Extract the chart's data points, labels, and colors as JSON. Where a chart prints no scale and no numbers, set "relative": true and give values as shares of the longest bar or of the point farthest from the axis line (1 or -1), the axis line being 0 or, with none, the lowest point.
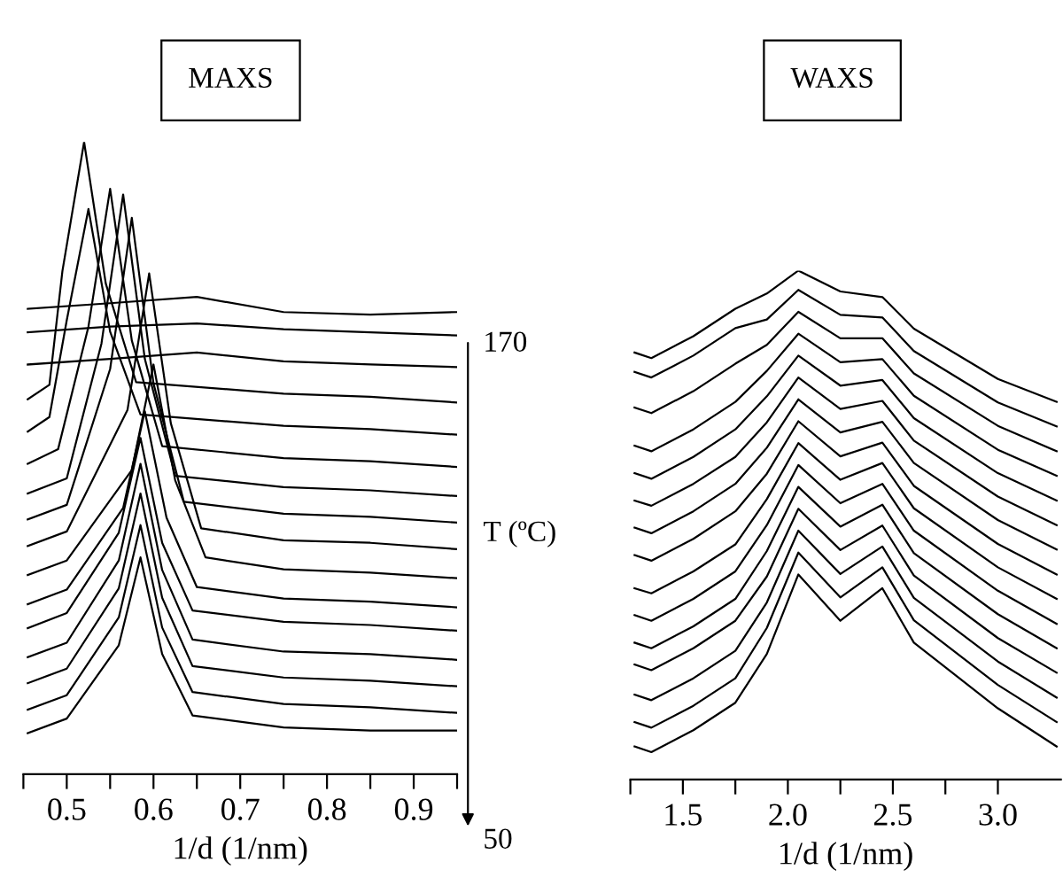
{
  "chart_data": [
    {
      "type": "line",
      "relative": true,
      "title": "MAXS",
      "xlabel": "1/d (1/nm)",
      "xlim": [
        0.45,
        0.95
      ],
      "tick_labels": "x",
      "grid": false,
      "marker": "none",
      "line_style": "solid",
      "xticks": [
        {
          "value": 0.45,
          "label": null
        },
        0.5,
        {
          "value": 0.55,
          "label": null
        },
        0.6,
        {
          "value": 0.65,
          "label": null
        },
        0.7,
        {
          "value": 0.75,
          "label": null
        },
        0.8,
        {
          "value": 0.85,
          "label": null
        },
        0.9,
        {
          "value": 0.95,
          "label": null
        }
      ],
      "annotations": [
        "170",
        "T (ºC)",
        "50"
      ],
      "series": [
        {
          "color": "#000000",
          "x": [
            0.455,
            0.5,
            0.56,
            0.585,
            0.61,
            0.645,
            0.75,
            0.85,
            0.95
          ],
          "values": [
            0.065,
            0.088,
            0.204,
            0.343,
            0.19,
            0.093,
            0.074,
            0.069,
            0.069
          ]
        },
        {
          "color": "#000000",
          "x": [
            0.455,
            0.5,
            0.56,
            0.585,
            0.61,
            0.645,
            0.75,
            0.85,
            0.95
          ],
          "values": [
            0.102,
            0.125,
            0.248,
            0.394,
            0.232,
            0.13,
            0.111,
            0.106,
            0.097
          ]
        },
        {
          "color": "#000000",
          "x": [
            0.455,
            0.5,
            0.56,
            0.585,
            0.61,
            0.645,
            0.75,
            0.85,
            0.95
          ],
          "values": [
            0.144,
            0.167,
            0.294,
            0.444,
            0.279,
            0.171,
            0.153,
            0.148,
            0.139
          ]
        },
        {
          "color": "#000000",
          "x": [
            0.455,
            0.5,
            0.56,
            0.585,
            0.61,
            0.645,
            0.75,
            0.85,
            0.95
          ],
          "values": [
            0.185,
            0.208,
            0.338,
            0.491,
            0.323,
            0.213,
            0.194,
            0.19,
            0.181
          ]
        },
        {
          "color": "#000000",
          "x": [
            0.455,
            0.5,
            0.56,
            0.585,
            0.61,
            0.645,
            0.75,
            0.85,
            0.95
          ],
          "values": [
            0.231,
            0.255,
            0.382,
            0.532,
            0.366,
            0.259,
            0.241,
            0.236,
            0.227
          ]
        },
        {
          "color": "#000000",
          "x": [
            0.455,
            0.5,
            0.565,
            0.59,
            0.615,
            0.65,
            0.75,
            0.85,
            0.95
          ],
          "values": [
            0.269,
            0.292,
            0.421,
            0.574,
            0.406,
            0.296,
            0.278,
            0.273,
            0.264
          ]
        },
        {
          "color": "#000000",
          "x": [
            0.455,
            0.5,
            0.575,
            0.6,
            0.625,
            0.66,
            0.75,
            0.85,
            0.95
          ],
          "values": [
            0.315,
            0.338,
            0.481,
            0.648,
            0.465,
            0.343,
            0.324,
            0.319,
            0.31
          ]
        },
        {
          "color": "#000000",
          "x": [
            0.455,
            0.5,
            0.57,
            0.595,
            0.62,
            0.655,
            0.75,
            0.85,
            0.95
          ],
          "values": [
            0.361,
            0.384,
            0.576,
            0.792,
            0.555,
            0.389,
            0.37,
            0.366,
            0.356
          ]
        },
        {
          "color": "#000000",
          "x": [
            0.455,
            0.5,
            0.55,
            0.575,
            0.6,
            0.635,
            0.75,
            0.85,
            0.95
          ],
          "values": [
            0.403,
            0.426,
            0.641,
            0.88,
            0.618,
            0.431,
            0.412,
            0.407,
            0.398
          ]
        },
        {
          "color": "#000000",
          "x": [
            0.455,
            0.5,
            0.54,
            0.565,
            0.59,
            0.625,
            0.75,
            0.85,
            0.95
          ],
          "values": [
            0.444,
            0.468,
            0.681,
            0.917,
            0.657,
            0.472,
            0.454,
            0.449,
            0.44
          ]
        },
        {
          "color": "#000000",
          "x": [
            0.455,
            0.49,
            0.525,
            0.55,
            0.575,
            0.61,
            0.75,
            0.85,
            0.95
          ],
          "values": [
            0.491,
            0.514,
            0.708,
            0.926,
            0.686,
            0.519,
            0.5,
            0.495,
            0.486
          ]
        },
        {
          "color": "#000000",
          "x": [
            0.455,
            0.48,
            0.5,
            0.525,
            0.55,
            0.585,
            0.75,
            0.85,
            0.95
          ],
          "values": [
            0.542,
            0.565,
            0.718,
            0.894,
            0.7,
            0.569,
            0.551,
            0.546,
            0.537
          ]
        },
        {
          "color": "#000000",
          "x": [
            0.455,
            0.48,
            0.495,
            0.52,
            0.545,
            0.58,
            0.75,
            0.85,
            0.95
          ],
          "values": [
            0.593,
            0.616,
            0.796,
            1.0,
            0.776,
            0.62,
            0.602,
            0.597,
            0.588
          ]
        },
        {
          "color": "#000000",
          "x": [
            0.455,
            0.55,
            0.65,
            0.75,
            0.85,
            0.95
          ],
          "values": [
            0.648,
            0.657,
            0.667,
            0.653,
            0.648,
            0.644
          ]
        },
        {
          "color": "#000000",
          "x": [
            0.455,
            0.55,
            0.65,
            0.75,
            0.85,
            0.95
          ],
          "values": [
            0.699,
            0.708,
            0.713,
            0.704,
            0.699,
            0.694
          ]
        },
        {
          "color": "#000000",
          "x": [
            0.455,
            0.55,
            0.65,
            0.75,
            0.85,
            0.95
          ],
          "values": [
            0.736,
            0.745,
            0.755,
            0.731,
            0.727,
            0.731
          ]
        }
      ]
    },
    {
      "type": "line",
      "relative": true,
      "title": "WAXS",
      "xlabel": "1/d (1/nm)",
      "xlim": [
        1.25,
        3.3
      ],
      "tick_labels": "x",
      "grid": false,
      "marker": "none",
      "line_style": "solid",
      "xticks": [
        {
          "value": 1.25,
          "label": null
        },
        1.5,
        {
          "value": 1.75,
          "label": null
        },
        {
          "value": 2,
          "label": "2.0"
        },
        {
          "value": 2.25,
          "label": null
        },
        2.5,
        {
          "value": 2.75,
          "label": null
        },
        {
          "value": 3,
          "label": "3.0"
        }
      ],
      "series": [
        {
          "color": "#000000",
          "x": [
            1.27,
            1.35,
            1.55,
            1.75,
            1.9,
            2.05,
            2.25,
            2.45,
            2.6,
            3.0,
            3.28
          ],
          "values": [
            0.065,
            0.054,
            0.097,
            0.151,
            0.247,
            0.403,
            0.312,
            0.376,
            0.269,
            0.14,
            0.065
          ]
        },
        {
          "color": "#000000",
          "x": [
            1.27,
            1.35,
            1.55,
            1.75,
            1.9,
            2.05,
            2.25,
            2.45,
            2.6,
            3.0,
            3.28
          ],
          "values": [
            0.113,
            0.102,
            0.145,
            0.199,
            0.298,
            0.446,
            0.358,
            0.417,
            0.313,
            0.186,
            0.113
          ]
        },
        {
          "color": "#000000",
          "x": [
            1.27,
            1.35,
            1.55,
            1.75,
            1.9,
            2.05,
            2.25,
            2.45,
            2.6,
            3.0,
            3.28
          ],
          "values": [
            0.167,
            0.156,
            0.199,
            0.253,
            0.348,
            0.489,
            0.404,
            0.458,
            0.357,
            0.232,
            0.161
          ]
        },
        {
          "color": "#000000",
          "x": [
            1.27,
            1.35,
            1.55,
            1.75,
            1.9,
            2.05,
            2.25,
            2.45,
            2.6,
            3.0,
            3.28
          ],
          "values": [
            0.226,
            0.215,
            0.258,
            0.312,
            0.399,
            0.532,
            0.451,
            0.499,
            0.401,
            0.278,
            0.21
          ]
        },
        {
          "color": "#000000",
          "x": [
            1.27,
            1.35,
            1.55,
            1.75,
            1.9,
            2.05,
            2.25,
            2.45,
            2.6,
            3.0,
            3.28
          ],
          "values": [
            0.269,
            0.258,
            0.301,
            0.355,
            0.449,
            0.575,
            0.497,
            0.54,
            0.445,
            0.325,
            0.258
          ]
        },
        {
          "color": "#000000",
          "x": [
            1.27,
            1.35,
            1.55,
            1.75,
            1.9,
            2.05,
            2.25,
            2.45,
            2.6,
            3.0,
            3.28
          ],
          "values": [
            0.323,
            0.312,
            0.355,
            0.409,
            0.5,
            0.618,
            0.543,
            0.581,
            0.489,
            0.371,
            0.306
          ]
        },
        {
          "color": "#000000",
          "x": [
            1.27,
            1.35,
            1.55,
            1.75,
            1.9,
            2.05,
            2.25,
            2.45,
            2.6,
            3.0,
            3.28
          ],
          "values": [
            0.376,
            0.366,
            0.409,
            0.462,
            0.551,
            0.661,
            0.589,
            0.622,
            0.533,
            0.417,
            0.355
          ]
        },
        {
          "color": "#000000",
          "x": [
            1.27,
            1.35,
            1.55,
            1.75,
            1.9,
            2.05,
            2.25,
            2.45,
            2.6,
            3.0,
            3.28
          ],
          "values": [
            0.441,
            0.43,
            0.473,
            0.527,
            0.601,
            0.704,
            0.635,
            0.662,
            0.577,
            0.463,
            0.403
          ]
        },
        {
          "color": "#000000",
          "x": [
            1.27,
            1.35,
            1.55,
            1.75,
            1.9,
            2.05,
            2.25,
            2.45,
            2.6,
            3.0,
            3.28
          ],
          "values": [
            0.495,
            0.484,
            0.527,
            0.581,
            0.652,
            0.747,
            0.682,
            0.703,
            0.622,
            0.51,
            0.452
          ]
        },
        {
          "color": "#000000",
          "x": [
            1.27,
            1.35,
            1.55,
            1.75,
            1.9,
            2.05,
            2.25,
            2.45,
            2.6,
            3.0,
            3.28
          ],
          "values": [
            0.548,
            0.538,
            0.581,
            0.634,
            0.702,
            0.79,
            0.728,
            0.744,
            0.666,
            0.556,
            0.5
          ]
        },
        {
          "color": "#000000",
          "x": [
            1.27,
            1.35,
            1.55,
            1.75,
            1.9,
            2.05,
            2.25,
            2.45,
            2.6,
            3.0,
            3.28
          ],
          "values": [
            0.602,
            0.591,
            0.634,
            0.688,
            0.753,
            0.833,
            0.774,
            0.785,
            0.71,
            0.602,
            0.548
          ]
        },
        {
          "color": "#000000",
          "x": [
            1.27,
            1.35,
            1.55,
            1.75,
            1.9,
            2.05,
            2.25,
            2.45,
            2.6,
            3.0,
            3.28
          ],
          "values": [
            0.656,
            0.645,
            0.688,
            0.742,
            0.803,
            0.876,
            0.82,
            0.826,
            0.754,
            0.648,
            0.597
          ]
        },
        {
          "color": "#000000",
          "x": [
            1.27,
            1.35,
            1.55,
            1.75,
            1.9,
            2.05,
            2.25,
            2.45,
            2.6,
            3.0,
            3.28
          ],
          "values": [
            0.731,
            0.72,
            0.763,
            0.817,
            0.854,
            0.919,
            0.867,
            0.867,
            0.798,
            0.695,
            0.645
          ]
        },
        {
          "color": "#000000",
          "x": [
            1.27,
            1.35,
            1.55,
            1.75,
            1.9,
            2.05,
            2.25,
            2.45,
            2.6,
            3.0,
            3.28
          ],
          "values": [
            0.801,
            0.79,
            0.833,
            0.887,
            0.904,
            0.962,
            0.913,
            0.908,
            0.842,
            0.741,
            0.694
          ]
        },
        {
          "color": "#000000",
          "x": [
            1.27,
            1.35,
            1.55,
            1.75,
            1.9,
            2.05,
            2.25,
            2.45,
            2.6,
            3.0,
            3.28
          ],
          "values": [
            0.839,
            0.828,
            0.871,
            0.925,
            0.955,
            1.0,
            0.959,
            0.948,
            0.886,
            0.787,
            0.742
          ]
        }
      ]
    }
  ]
}
